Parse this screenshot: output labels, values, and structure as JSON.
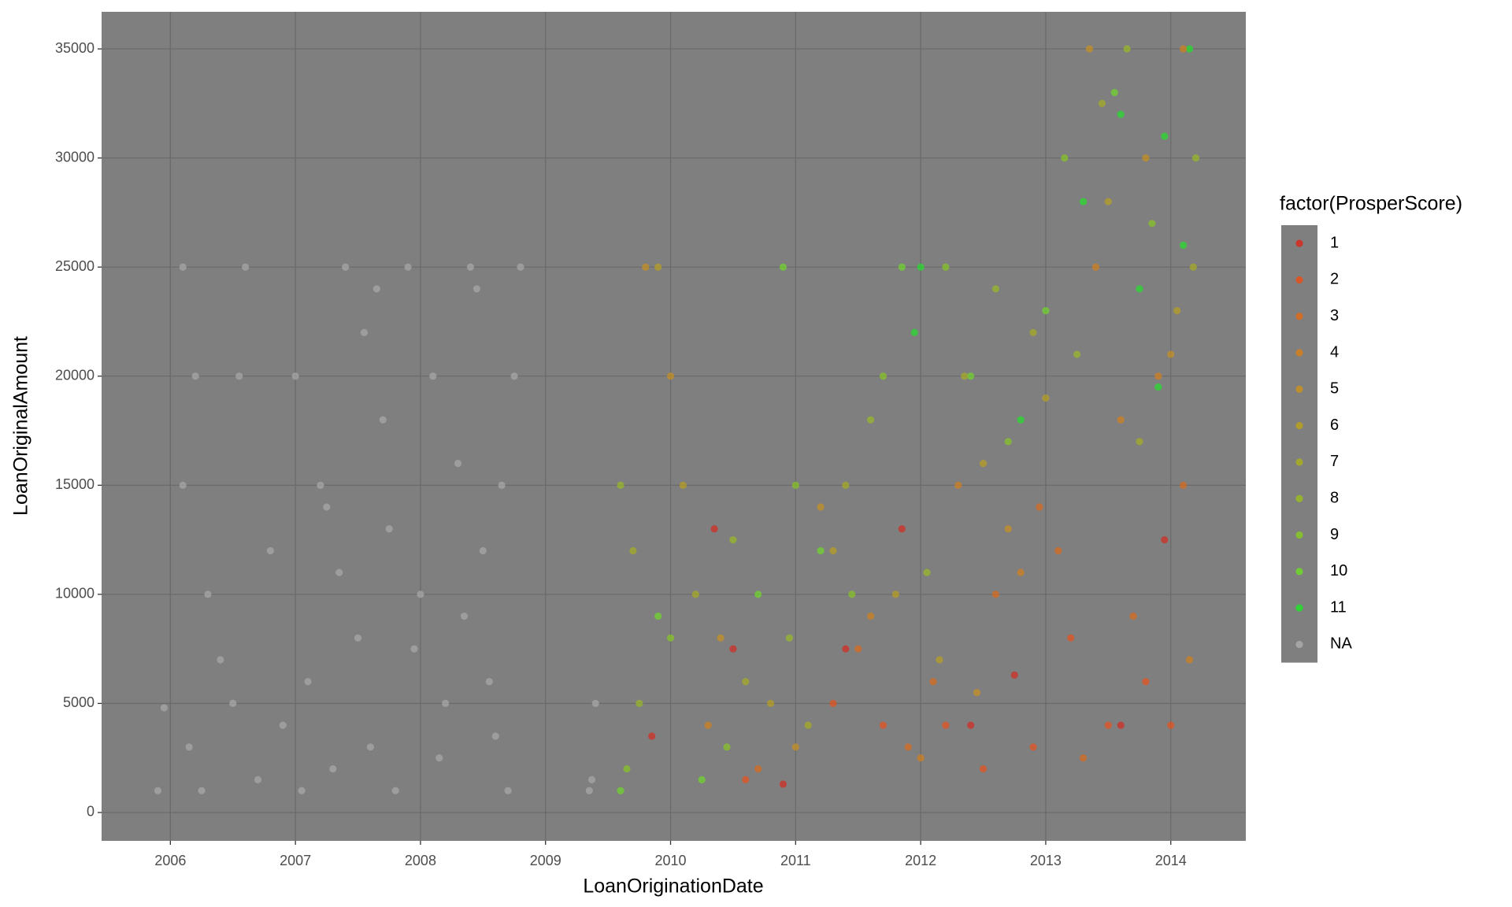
{
  "chart_data": {
    "type": "scatter",
    "x_label": "LoanOriginationDate",
    "y_label": "LoanOriginalAmount",
    "legend_title": "factor(ProsperScore)",
    "legend_position": "right",
    "grid": true,
    "xlim": [
      2005.45,
      2014.6
    ],
    "xticks": [
      2006,
      2007,
      2008,
      2009,
      2010,
      2011,
      2012,
      2013,
      2014
    ],
    "ylim": [
      -1300,
      36700
    ],
    "yticks": [
      0,
      5000,
      10000,
      15000,
      20000,
      25000,
      30000,
      35000
    ],
    "series": [
      {
        "name": "1",
        "color": "#d62a1e",
        "x": [
          2010.35,
          2010.5,
          2011.85,
          2012.75,
          2013.95,
          2010.9,
          2012.4,
          2013.6,
          2009.85,
          2011.4
        ],
        "values": [
          13000,
          7500,
          13000,
          6300,
          12500,
          1300,
          4000,
          4000,
          3500,
          7500
        ]
      },
      {
        "name": "2",
        "color": "#e8501a",
        "x": [
          2010.6,
          2011.7,
          2012.2,
          2012.9,
          2013.5,
          2014.0,
          2013.2,
          2012.5,
          2011.3,
          2013.8
        ],
        "values": [
          1500,
          4000,
          4000,
          3000,
          4000,
          4000,
          8000,
          2000,
          5000,
          6000
        ]
      },
      {
        "name": "3",
        "color": "#dd6a1a",
        "x": [
          2011.5,
          2012.1,
          2012.6,
          2013.1,
          2013.7,
          2014.1,
          2013.3,
          2011.9,
          2010.7,
          2012.95
        ],
        "values": [
          7500,
          6000,
          10000,
          12000,
          9000,
          15000,
          2500,
          3000,
          2000,
          14000
        ]
      },
      {
        "name": "4",
        "color": "#d4801a",
        "x": [
          2012.3,
          2013.4,
          2013.9,
          2014.1,
          2012.8,
          2011.6,
          2010.3,
          2013.6,
          2012.0,
          2014.15
        ],
        "values": [
          15000,
          25000,
          20000,
          35000,
          11000,
          9000,
          4000,
          18000,
          2500,
          7000
        ]
      },
      {
        "name": "5",
        "color": "#c8901e",
        "x": [
          2009.8,
          2010.0,
          2011.2,
          2012.7,
          2013.35,
          2013.8,
          2011.0,
          2014.0,
          2012.45,
          2010.4
        ],
        "values": [
          25000,
          20000,
          14000,
          13000,
          35000,
          30000,
          3000,
          21000,
          5500,
          8000
        ]
      },
      {
        "name": "6",
        "color": "#b8a020",
        "x": [
          2009.9,
          2010.1,
          2011.3,
          2012.5,
          2013.5,
          2014.05,
          2012.15,
          2010.8,
          2013.0,
          2011.8
        ],
        "values": [
          25000,
          15000,
          12000,
          16000,
          28000,
          23000,
          7000,
          5000,
          19000,
          10000
        ]
      },
      {
        "name": "7",
        "color": "#a8ae20",
        "x": [
          2009.7,
          2010.2,
          2011.4,
          2012.35,
          2013.45,
          2014.18,
          2010.6,
          2012.9,
          2013.75,
          2011.1
        ],
        "values": [
          12000,
          10000,
          15000,
          20000,
          32500,
          25000,
          6000,
          22000,
          17000,
          4000
        ]
      },
      {
        "name": "8",
        "color": "#98bb22",
        "x": [
          2009.6,
          2009.75,
          2010.5,
          2011.6,
          2012.6,
          2013.65,
          2014.2,
          2010.95,
          2012.05,
          2013.25
        ],
        "values": [
          15000,
          5000,
          12500,
          18000,
          24000,
          35000,
          30000,
          8000,
          11000,
          21000
        ]
      },
      {
        "name": "9",
        "color": "#88c824",
        "x": [
          2009.65,
          2010.0,
          2011.0,
          2011.7,
          2012.2,
          2013.15,
          2013.85,
          2010.45,
          2012.7,
          2011.45
        ],
        "values": [
          2000,
          8000,
          15000,
          20000,
          25000,
          30000,
          27000,
          3000,
          17000,
          10000
        ]
      },
      {
        "name": "10",
        "color": "#6ed82a",
        "x": [
          2009.6,
          2010.25,
          2010.9,
          2011.85,
          2012.4,
          2013.0,
          2013.55,
          2010.7,
          2011.2,
          2009.9
        ],
        "values": [
          1000,
          1500,
          25000,
          25000,
          20000,
          23000,
          33000,
          10000,
          12000,
          9000
        ]
      },
      {
        "name": "11",
        "color": "#22e02a",
        "x": [
          2012.0,
          2013.6,
          2013.95,
          2014.1,
          2013.9,
          2012.8,
          2013.3,
          2014.15,
          2011.95,
          2013.75
        ],
        "values": [
          25000,
          32000,
          31000,
          26000,
          19500,
          18000,
          28000,
          35000,
          22000,
          24000
        ]
      },
      {
        "name": "NA",
        "color": "#aaaaaa",
        "x": [
          2005.9,
          2005.95,
          2006.1,
          2006.1,
          2006.2,
          2006.3,
          2006.5,
          2006.6,
          2006.8,
          2007.0,
          2007.2,
          2007.3,
          2007.4,
          2007.5,
          2007.6,
          2007.7,
          2007.8,
          2007.9,
          2008.0,
          2008.1,
          2008.2,
          2008.3,
          2008.4,
          2008.5,
          2008.6,
          2008.7,
          2008.75,
          2008.8,
          2006.4,
          2006.7,
          2006.9,
          2007.1,
          2007.35,
          2007.55,
          2007.75,
          2007.95,
          2008.15,
          2008.35,
          2008.55,
          2008.65,
          2009.35,
          2009.37,
          2009.4,
          2006.15,
          2006.25,
          2007.05,
          2007.65,
          2008.45,
          2006.55,
          2007.25
        ],
        "values": [
          1000,
          4800,
          25000,
          15000,
          20000,
          10000,
          5000,
          25000,
          12000,
          20000,
          15000,
          2000,
          25000,
          8000,
          3000,
          18000,
          1000,
          25000,
          10000,
          20000,
          5000,
          16000,
          25000,
          12000,
          3500,
          1000,
          20000,
          25000,
          7000,
          1500,
          4000,
          6000,
          11000,
          22000,
          13000,
          7500,
          2500,
          9000,
          6000,
          15000,
          1000,
          1500,
          5000,
          3000,
          1000,
          1000,
          24000,
          24000,
          20000,
          14000
        ]
      }
    ]
  }
}
